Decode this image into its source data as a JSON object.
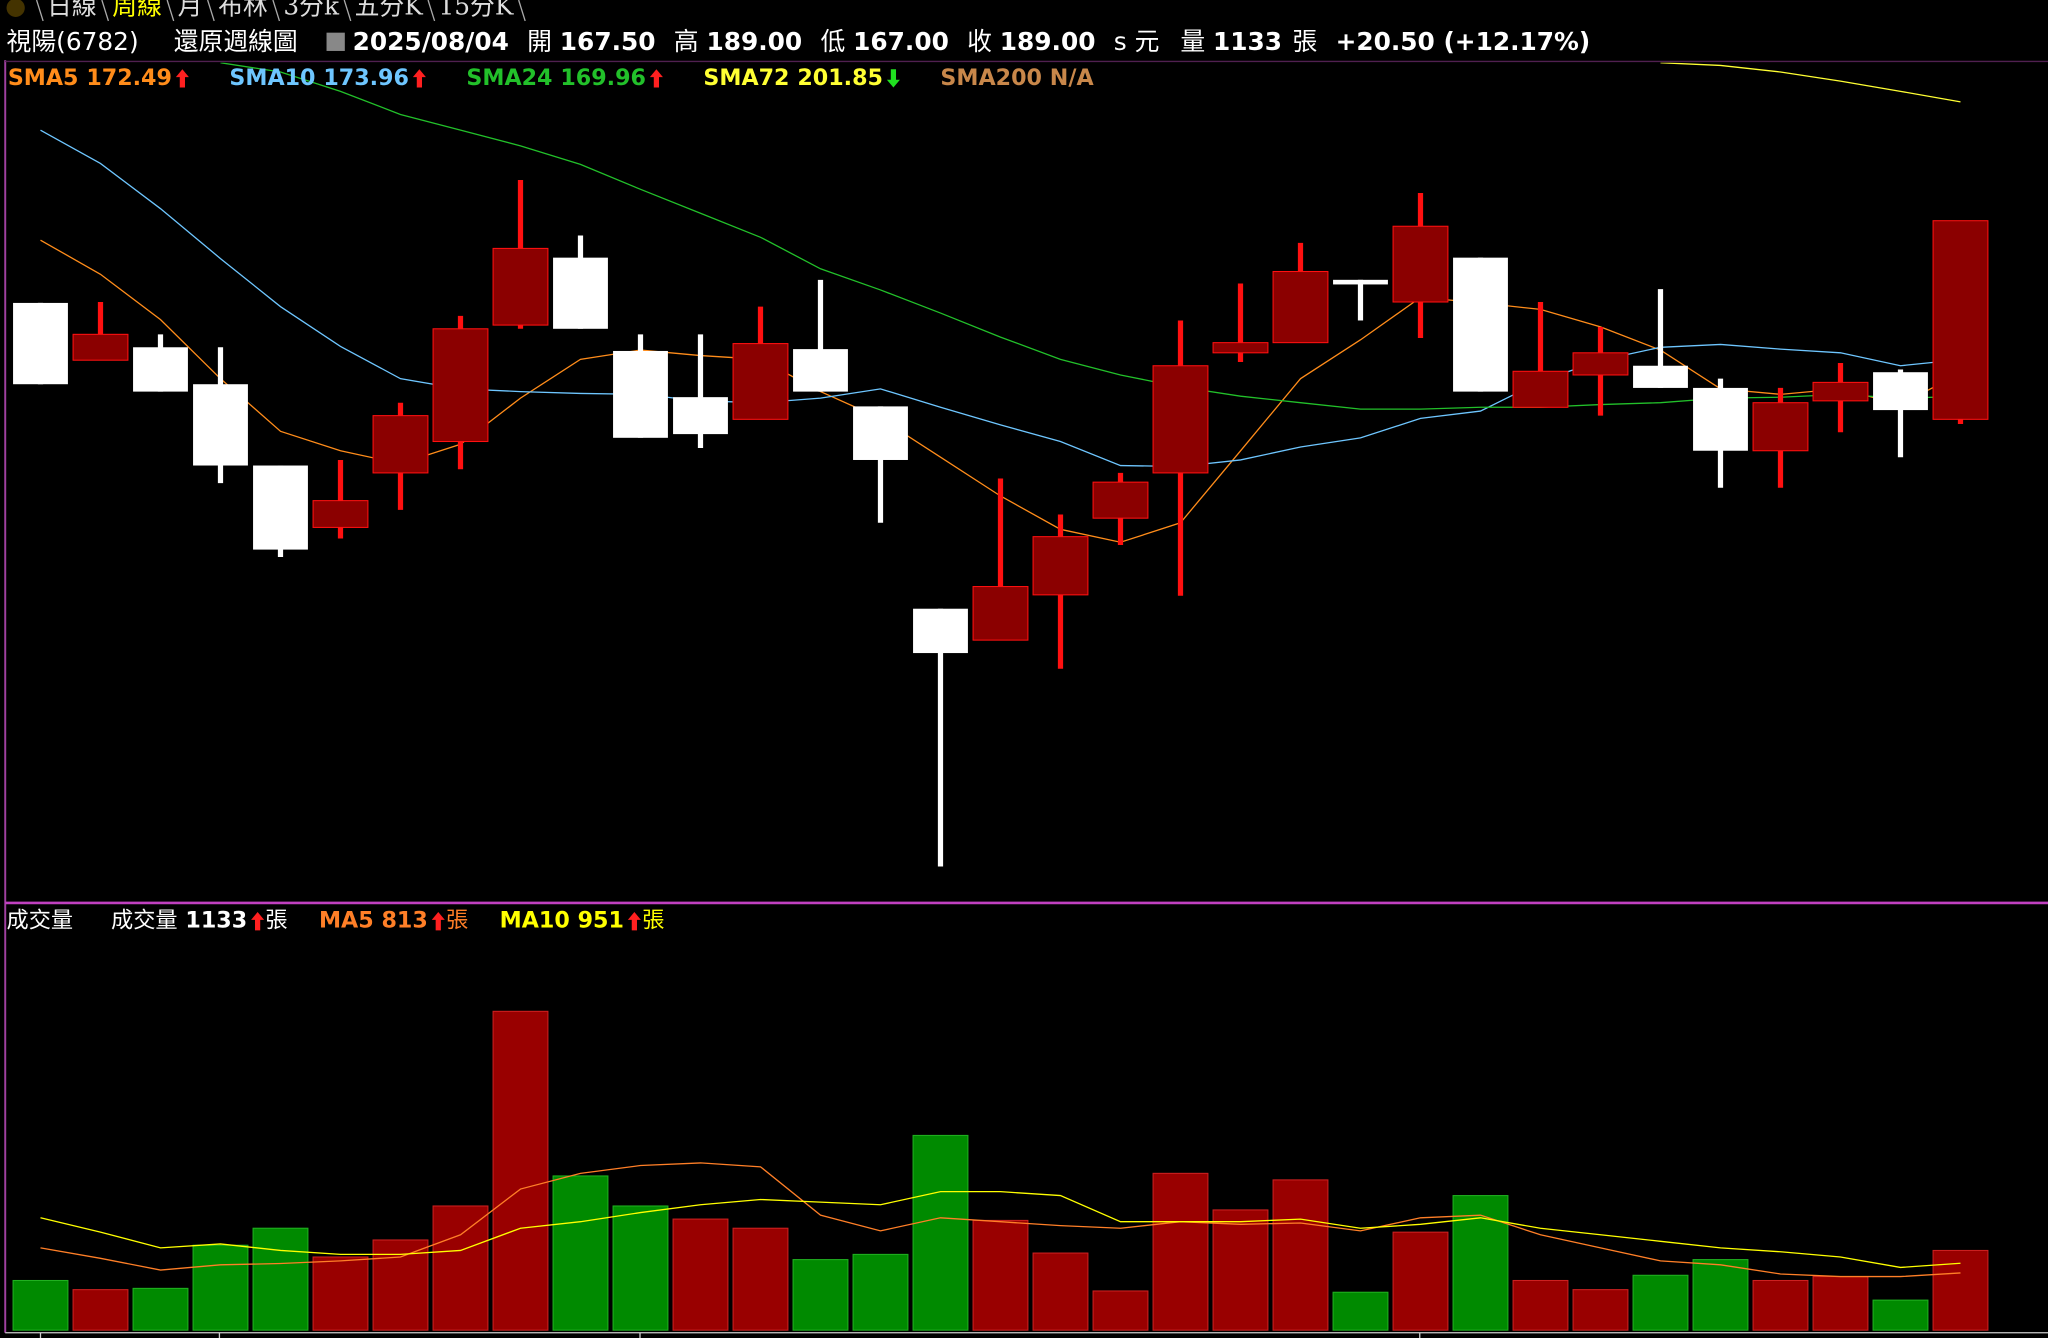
{
  "header": {
    "tabs": [
      "日線",
      "周線",
      "月",
      "布林",
      "3分k",
      "五分K",
      "15分K"
    ],
    "active_tab": 1,
    "stock": "視陽(6782)",
    "mode": "還原週線圖",
    "date": "2025/08/04",
    "quote": [
      {
        "label": "開",
        "value": "167.50"
      },
      {
        "label": "高",
        "value": "189.00"
      },
      {
        "label": "低",
        "value": "167.00"
      },
      {
        "label": "收",
        "value": "189.00"
      }
    ],
    "currency": "s 元",
    "volume_label": "量",
    "volume": "1133",
    "volume_unit": "張",
    "change": "+20.50 (+12.17%)"
  },
  "chart_data": [
    {
      "type": "candlestick",
      "ylim": [
        115.3,
        206.1
      ],
      "up_color": "#8b0000",
      "up_wick_color": "#ff1010",
      "down_color": "#ffffff",
      "open": [
        180.1,
        173.9,
        175.3,
        171.3,
        162.5,
        155.8,
        161.7,
        165.1,
        177.7,
        185.0,
        174.9,
        169.9,
        167.5,
        175.1,
        168.9,
        147.0,
        143.6,
        148.5,
        156.8,
        161.7,
        174.7,
        175.8,
        182.6,
        180.2,
        185.0,
        168.8,
        172.3,
        173.3,
        170.9,
        164.1,
        169.5,
        172.6,
        167.5
      ],
      "high": [
        180.1,
        180.2,
        176.7,
        175.3,
        162.5,
        163.1,
        169.3,
        178.7,
        193.4,
        187.4,
        176.7,
        176.7,
        179.7,
        182.6,
        168.9,
        147.0,
        161.1,
        157.2,
        161.7,
        178.2,
        182.2,
        186.6,
        182.6,
        192.0,
        185.0,
        180.2,
        177.5,
        181.6,
        171.9,
        170.9,
        173.6,
        172.9,
        189
      ],
      "low": [
        171.3,
        173.9,
        170.5,
        160.6,
        152.6,
        154.6,
        157.7,
        162.1,
        177.3,
        177.3,
        165.5,
        164.4,
        167.5,
        170.5,
        156.3,
        119.1,
        143.6,
        140.5,
        153.9,
        148.4,
        173.7,
        175.8,
        178.2,
        176.3,
        170.5,
        168.8,
        167.9,
        170.9,
        160.1,
        160.1,
        166.1,
        163.4,
        167
      ],
      "close": [
        171.3,
        176.7,
        170.5,
        162.5,
        153.4,
        158.7,
        167.9,
        177.3,
        186.0,
        177.3,
        165.5,
        165.9,
        175.7,
        170.5,
        163.1,
        142.2,
        149.4,
        154.8,
        160.7,
        173.3,
        175.8,
        183.5,
        182.1,
        188.4,
        170.5,
        172.7,
        174.7,
        170.9,
        164.1,
        169.3,
        171.5,
        168.5,
        189
      ],
      "series": [
        {
          "name": "SMA5",
          "color": "#ff8c1a",
          "trend": "up",
          "values": [
            186.9,
            183.2,
            178.3,
            171.9,
            166.2,
            164.1,
            162.7,
            164.8,
            169.8,
            174.0,
            175.0,
            174.4,
            174.0,
            170.5,
            167.6,
            163.4,
            159.2,
            155.6,
            154.2,
            156.3,
            164.1,
            171.9,
            176.1,
            180.7,
            180.1,
            179.4,
            177.5,
            175.0,
            170.8,
            170.2,
            170.8,
            169.1,
            172.49
          ]
        },
        {
          "name": "SMA10",
          "color": "#6ec6ff",
          "trend": "up",
          "values": [
            198.8,
            195.2,
            190.3,
            184.9,
            179.7,
            175.4,
            171.9,
            170.8,
            170.5,
            170.3,
            170.2,
            169.5,
            169.3,
            169.8,
            170.8,
            168.8,
            166.9,
            165.1,
            162.5,
            162.4,
            163.1,
            164.5,
            165.5,
            167.6,
            168.4,
            171.6,
            173.9,
            175.3,
            175.6,
            175.1,
            174.7,
            173.3,
            173.96
          ]
        },
        {
          "name": "SMA24",
          "color": "#22c02a",
          "trend": "up",
          "values": [
            null,
            null,
            null,
            206.1,
            205.1,
            203.0,
            200.5,
            198.8,
            197.1,
            195.1,
            192.4,
            189.8,
            187.2,
            183.8,
            181.5,
            179.0,
            176.4,
            174.0,
            172.3,
            171.0,
            170.0,
            169.3,
            168.6,
            168.6,
            168.8,
            168.8,
            169.1,
            169.3,
            169.8,
            169.9,
            170.2,
            169.8,
            169.96
          ]
        },
        {
          "name": "SMA72",
          "color": "#ffff33",
          "trend": "down",
          "values": [
            null,
            null,
            null,
            null,
            null,
            null,
            null,
            null,
            null,
            null,
            null,
            null,
            null,
            null,
            null,
            null,
            null,
            null,
            null,
            null,
            null,
            null,
            null,
            null,
            null,
            null,
            null,
            206.1,
            205.8,
            205.1,
            204.1,
            203.0,
            201.85
          ]
        },
        {
          "name": "SMA200",
          "color": "#c8874a",
          "label": "N/A"
        }
      ]
    },
    {
      "type": "bar",
      "title": "成交量",
      "unit": "張",
      "ylim": [
        0,
        6036
      ],
      "up_color": "#990000",
      "down_color": "#008a00",
      "series": [
        {
          "name": "成交量",
          "color": "#ffffff",
          "trend": "up",
          "values": [
            706,
            576,
            594,
            1207,
            1449,
            1040,
            1282,
            1765,
            4532,
            2192,
            1765,
            1579,
            1449,
            1003,
            1077,
            2768,
            1560,
            1096,
            557,
            2229,
            1709,
            2136,
            539,
            1393,
            1913,
            706,
            576,
            780,
            1003,
            706,
            762,
            427,
            1133
          ]
        },
        {
          "name": "MA5",
          "color": "#ff7f27",
          "trend": "up",
          "values": [
            1170,
            1022,
            854,
            929,
            947,
            984,
            1040,
            1356,
            2006,
            2229,
            2340,
            2377,
            2322,
            1635,
            1412,
            1597,
            1542,
            1486,
            1449,
            1542,
            1504,
            1523,
            1412,
            1597,
            1635,
            1356,
            1170,
            984,
            929,
            799,
            762,
            762,
            813
          ]
        },
        {
          "name": "MA10",
          "color": "#ffff00",
          "trend": "up",
          "values": [
            1597,
            1393,
            1170,
            1226,
            1133,
            1077,
            1077,
            1133,
            1449,
            1542,
            1672,
            1783,
            1857,
            1820,
            1783,
            1969,
            1969,
            1913,
            1542,
            1542,
            1542,
            1579,
            1449,
            1504,
            1597,
            1449,
            1356,
            1263,
            1170,
            1114,
            1040,
            892,
            951
          ]
        }
      ]
    }
  ]
}
